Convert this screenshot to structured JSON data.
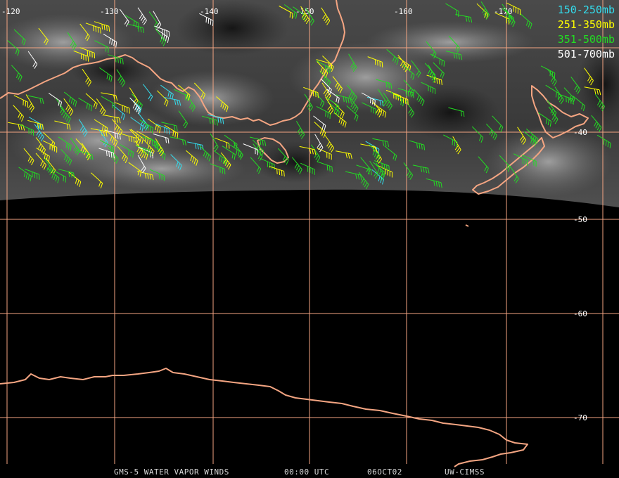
{
  "legend": [
    {
      "label": "150-250mb",
      "color": "#33ddee"
    },
    {
      "label": "251-350mb",
      "color": "#ffff00"
    },
    {
      "label": "351-500mb",
      "color": "#22dd22"
    },
    {
      "label": "501-700mb",
      "color": "#ffffff"
    }
  ],
  "longitude_labels": [
    "-120",
    "-130",
    "-140",
    "-150",
    "-160",
    "-170"
  ],
  "latitude_labels": [
    "-40",
    "-50",
    "-60",
    "-70"
  ],
  "footer": {
    "product": "GMS-5 WATER VAPOR WINDS",
    "time": "00:00 UTC",
    "date": "06OCT02",
    "credit": "UW-CIMSS"
  },
  "colors": {
    "coastline": "#f4a582",
    "gridline": "#f4a582",
    "background": "#000000"
  }
}
